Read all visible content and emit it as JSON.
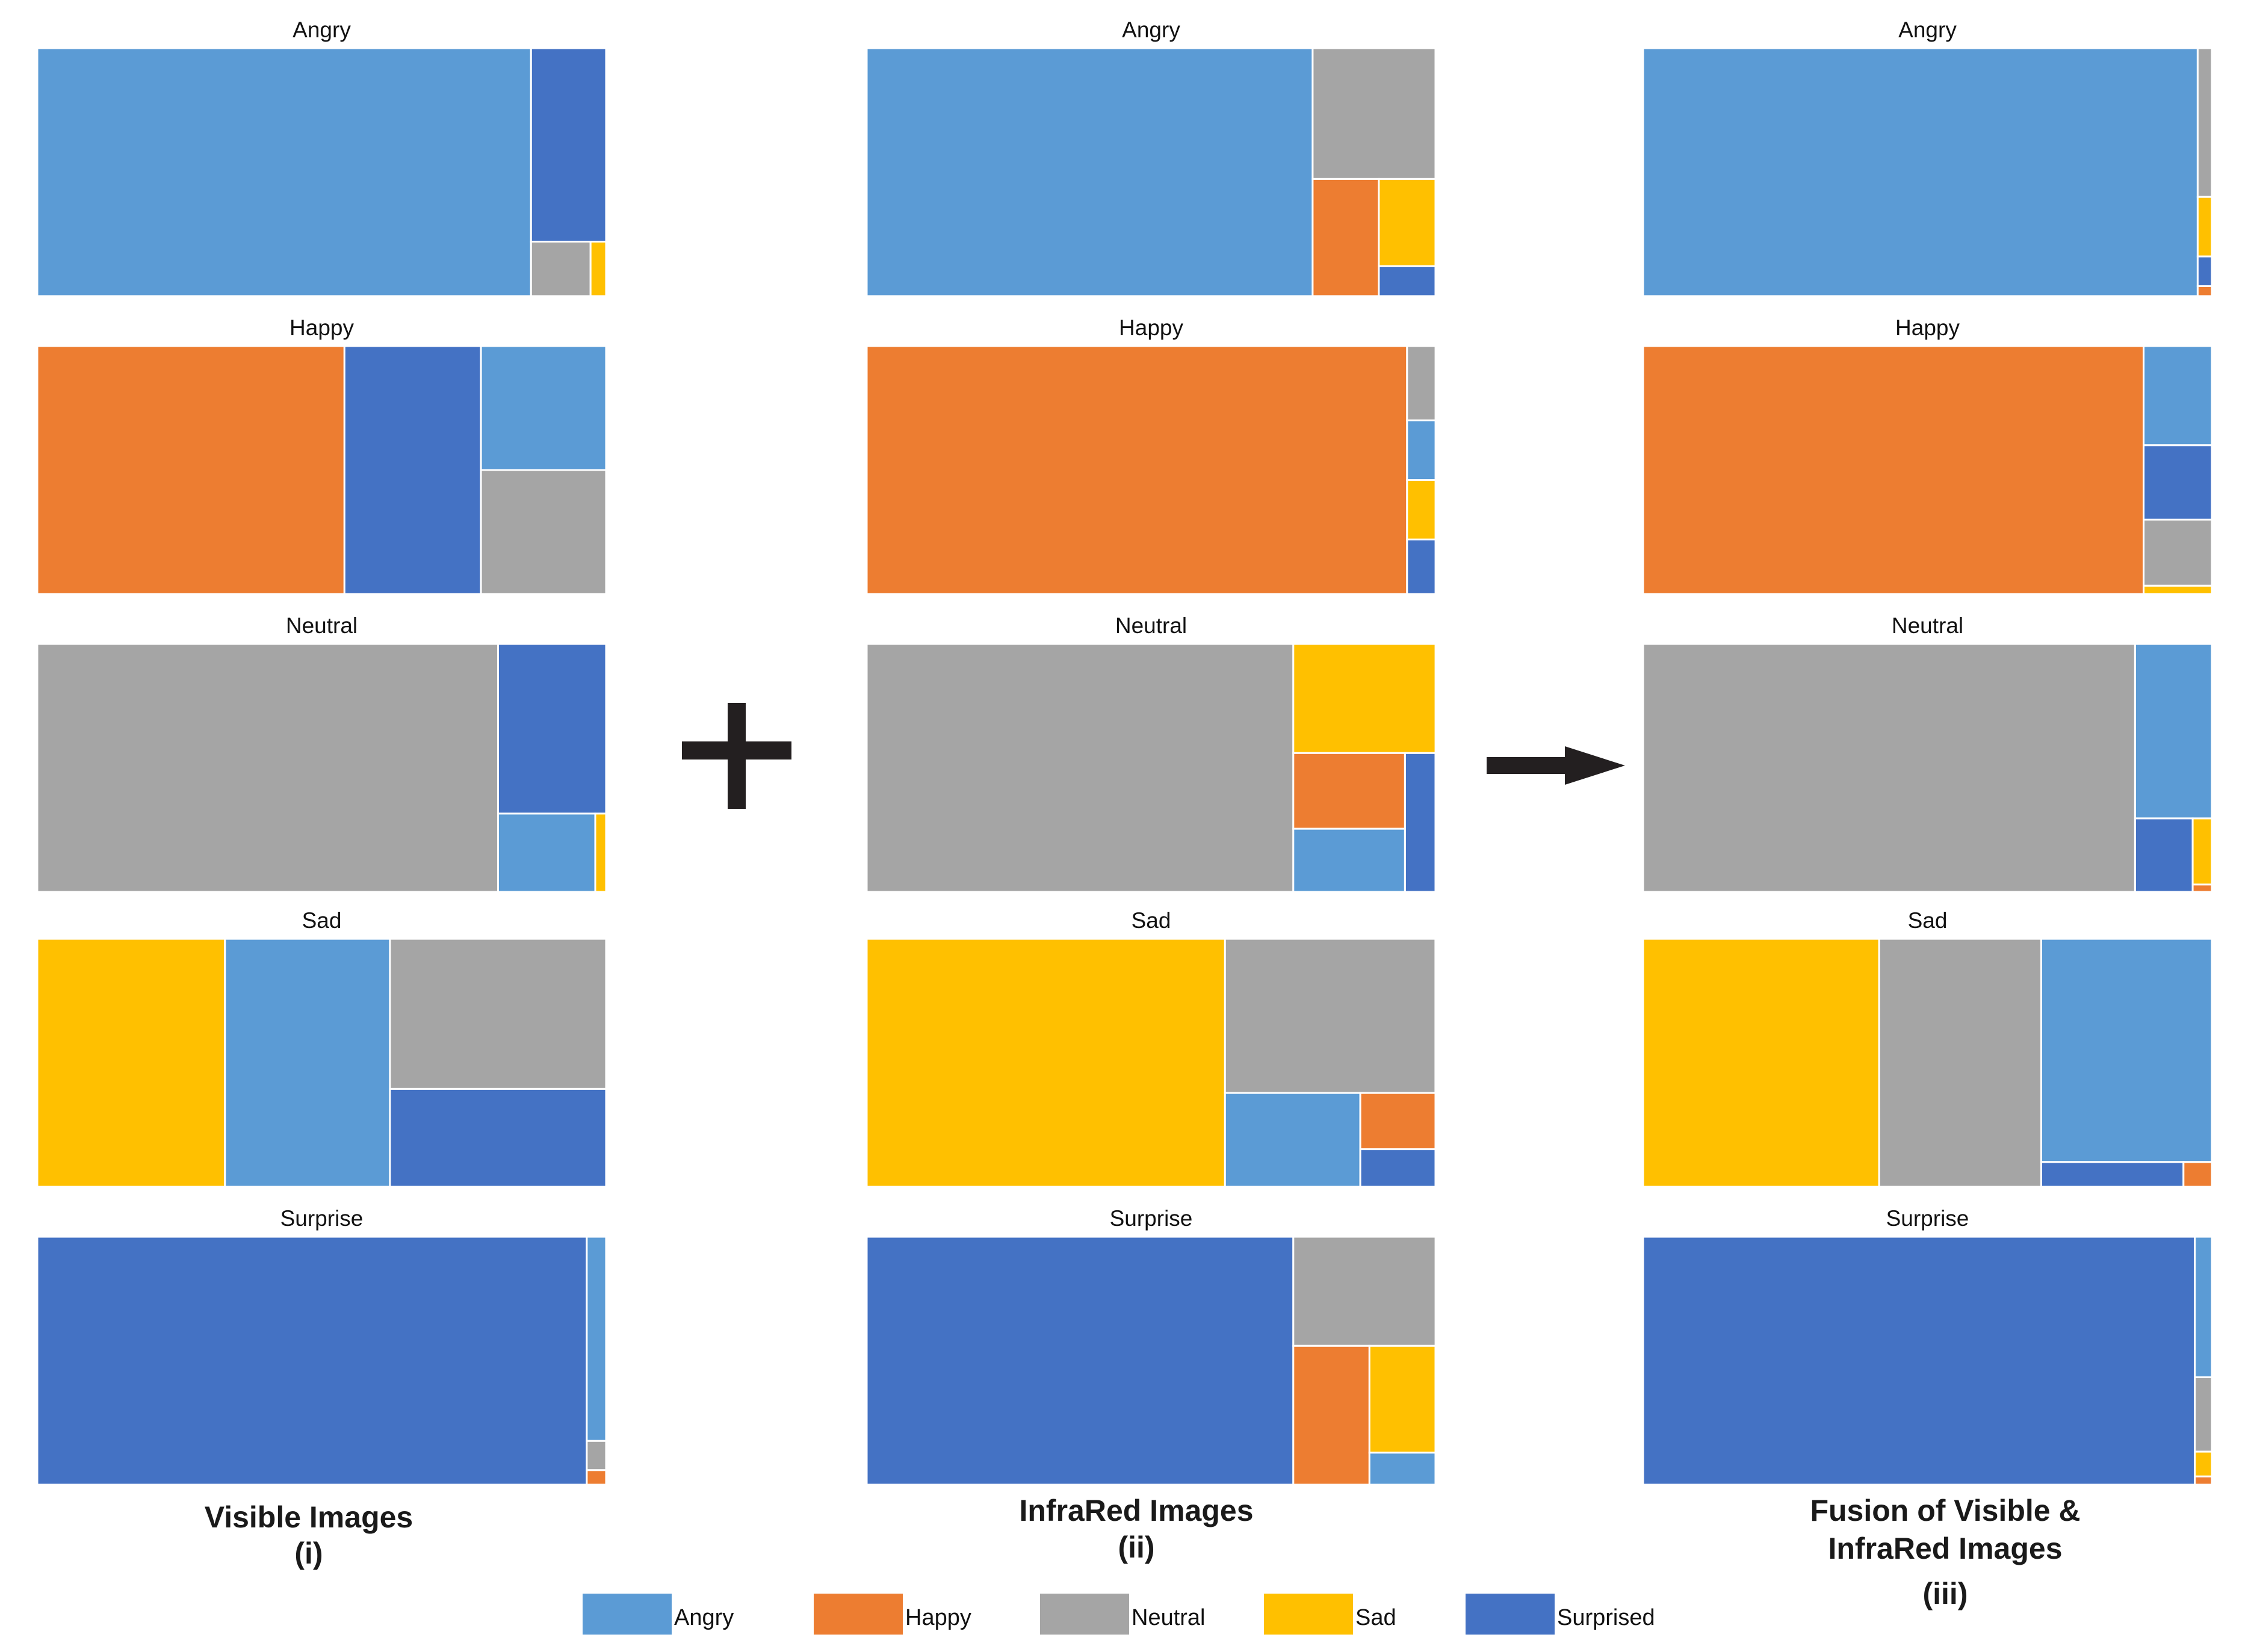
{
  "chart_data": {
    "type": "treemap",
    "colors": {
      "Angry": "#5B9BD5",
      "Happy": "#ED7D31",
      "Neutral": "#A5A5A5",
      "Sad": "#FFC000",
      "Surprised": "#4472C4"
    },
    "legend": {
      "placement": "bottom-center",
      "items": [
        "Angry",
        "Happy",
        "Neutral",
        "Sad",
        "Surprised"
      ]
    },
    "operators": {
      "plus": "+",
      "arrow": "→"
    },
    "panels": [
      {
        "caption_line1": "Visible Images",
        "caption_line2": "(i)",
        "caption_line3": "",
        "charts": [
          {
            "title": "Angry",
            "values": {
              "Angry": 86.8,
              "Surprised": 10.3,
              "Neutral": 2.3,
              "Sad": 0.6,
              "Happy": 0
            }
          },
          {
            "title": "Happy",
            "values": {
              "Happy": 54,
              "Surprised": 24,
              "Angry": 11,
              "Neutral": 11,
              "Sad": 0
            }
          },
          {
            "title": "Neutral",
            "values": {
              "Neutral": 81,
              "Surprised": 13,
              "Angry": 5.4,
              "Sad": 0.6,
              "Happy": 0
            }
          },
          {
            "title": "Sad",
            "values": {
              "Sad": 33,
              "Angry": 29,
              "Neutral": 23,
              "Surprised": 15,
              "Happy": 0
            }
          },
          {
            "title": "Surprise",
            "values": {
              "Surprised": 96.6,
              "Angry": 2.8,
              "Neutral": 0.4,
              "Happy": 0.2,
              "Sad": 0
            }
          }
        ]
      },
      {
        "caption_line1": "InfraRed Images",
        "caption_line2": "(ii)",
        "caption_line3": "",
        "charts": [
          {
            "title": "Angry",
            "values": {
              "Angry": 78.4,
              "Neutral": 11.4,
              "Happy": 5.5,
              "Sad": 3.5,
              "Surprised": 1.2
            }
          },
          {
            "title": "Happy",
            "values": {
              "Happy": 95,
              "Neutral": 1.5,
              "Angry": 1.2,
              "Sad": 1.2,
              "Surprised": 1.1
            }
          },
          {
            "title": "Neutral",
            "values": {
              "Neutral": 75,
              "Sad": 11,
              "Happy": 6,
              "Angry": 5,
              "Surprised": 3
            }
          },
          {
            "title": "Sad",
            "values": {
              "Sad": 63,
              "Neutral": 23,
              "Angry": 9,
              "Happy": 3,
              "Surprised": 2
            }
          },
          {
            "title": "Surprise",
            "values": {
              "Surprised": 75,
              "Neutral": 11,
              "Happy": 7.5,
              "Sad": 5,
              "Angry": 1.5
            }
          }
        ]
      },
      {
        "caption_line1": "Fusion of Visible &",
        "caption_line2": "InfraRed Images",
        "caption_line3": "(iii)",
        "charts": [
          {
            "title": "Angry",
            "values": {
              "Angry": 97.5,
              "Neutral": 1.5,
              "Sad": 0.6,
              "Surprised": 0.3,
              "Happy": 0.1
            }
          },
          {
            "title": "Happy",
            "values": {
              "Happy": 88,
              "Angry": 4.8,
              "Surprised": 3.6,
              "Neutral": 3.2,
              "Sad": 0.4
            }
          },
          {
            "title": "Neutral",
            "values": {
              "Neutral": 86.5,
              "Angry": 9.5,
              "Surprised": 3,
              "Sad": 0.9,
              "Happy": 0.1
            }
          },
          {
            "title": "Sad",
            "values": {
              "Sad": 41.5,
              "Neutral": 28.5,
              "Angry": 27,
              "Surprised": 2.5,
              "Happy": 0.5
            }
          },
          {
            "title": "Surprise",
            "values": {
              "Surprised": 97,
              "Angry": 1.7,
              "Neutral": 0.9,
              "Sad": 0.3,
              "Happy": 0.1
            }
          }
        ]
      }
    ]
  }
}
